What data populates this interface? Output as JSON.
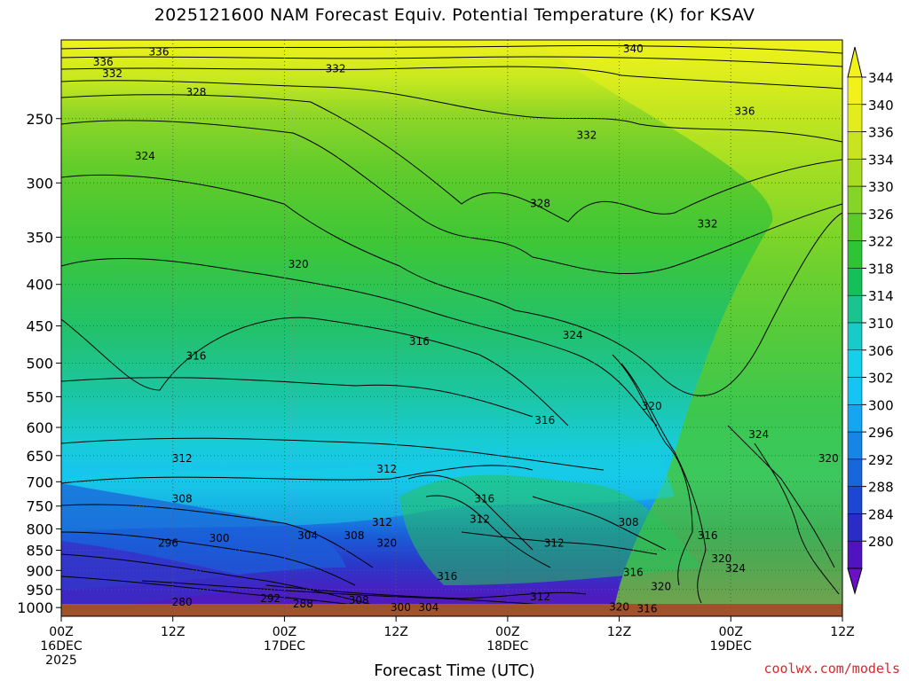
{
  "chart_data": {
    "type": "heatmap",
    "title": "2025121600 NAM Forecast Equiv. Potential Temperature (K) for KSAV",
    "xlabel": "Forecast Time (UTC)",
    "ylabel": "",
    "x_ticks": [
      {
        "line1": "00Z",
        "line2": "16DEC",
        "line3": "2025",
        "hour": 0
      },
      {
        "line1": "12Z",
        "line2": "",
        "line3": "",
        "hour": 12
      },
      {
        "line1": "00Z",
        "line2": "17DEC",
        "line3": "",
        "hour": 24
      },
      {
        "line1": "12Z",
        "line2": "",
        "line3": "",
        "hour": 36
      },
      {
        "line1": "00Z",
        "line2": "18DEC",
        "line3": "",
        "hour": 48
      },
      {
        "line1": "12Z",
        "line2": "",
        "line3": "",
        "hour": 60
      },
      {
        "line1": "00Z",
        "line2": "19DEC",
        "line3": "",
        "hour": 72
      },
      {
        "line1": "12Z",
        "line2": "",
        "line3": "",
        "hour": 84
      }
    ],
    "xlim": [
      0,
      84
    ],
    "y_ticks": [
      250,
      300,
      350,
      400,
      450,
      500,
      550,
      600,
      650,
      700,
      750,
      800,
      850,
      900,
      950,
      1000
    ],
    "ylim": [
      1025,
      200
    ],
    "y_scale": "log-pressure (inverted)",
    "grid": true,
    "colorbar": {
      "labels": [
        "344",
        "340",
        "336",
        "334",
        "330",
        "326",
        "322",
        "318",
        "314",
        "310",
        "306",
        "302",
        "300",
        "296",
        "292",
        "288",
        "284",
        "280"
      ],
      "colors": [
        "#f2f21a",
        "#e3ec1c",
        "#c8e41f",
        "#a8dc22",
        "#86d426",
        "#5ccb2a",
        "#2fc436",
        "#16c059",
        "#1ac491",
        "#19cbc8",
        "#16cfe8",
        "#15c4f4",
        "#14a6f0",
        "#1785e6",
        "#1866dc",
        "#1b47d2",
        "#2a2cc6",
        "#5014bf"
      ],
      "arrow_top_color": "#f2f21a",
      "arrow_bottom_color": "#6c10c8"
    },
    "contour_labels": [
      {
        "text": "336",
        "hour": 10.5,
        "p": 207
      },
      {
        "text": "340",
        "hour": 61.5,
        "p": 205
      },
      {
        "text": "336",
        "hour": 4.5,
        "p": 213
      },
      {
        "text": "332",
        "hour": 5.5,
        "p": 220
      },
      {
        "text": "332",
        "hour": 29.5,
        "p": 217
      },
      {
        "text": "328",
        "hour": 14.5,
        "p": 232
      },
      {
        "text": "336",
        "hour": 73.5,
        "p": 245
      },
      {
        "text": "332",
        "hour": 56.5,
        "p": 262
      },
      {
        "text": "324",
        "hour": 9.0,
        "p": 278
      },
      {
        "text": "328",
        "hour": 51.5,
        "p": 318
      },
      {
        "text": "332",
        "hour": 69.5,
        "p": 337
      },
      {
        "text": "320",
        "hour": 25.5,
        "p": 378
      },
      {
        "text": "316",
        "hour": 14.5,
        "p": 490
      },
      {
        "text": "316",
        "hour": 38.5,
        "p": 470
      },
      {
        "text": "324",
        "hour": 55.0,
        "p": 462
      },
      {
        "text": "320",
        "hour": 63.5,
        "p": 565
      },
      {
        "text": "316",
        "hour": 52.0,
        "p": 588
      },
      {
        "text": "324",
        "hour": 75.0,
        "p": 612
      },
      {
        "text": "320",
        "hour": 82.5,
        "p": 655
      },
      {
        "text": "312",
        "hour": 13.0,
        "p": 655
      },
      {
        "text": "312",
        "hour": 35.0,
        "p": 675
      },
      {
        "text": "308",
        "hour": 13.0,
        "p": 735
      },
      {
        "text": "316",
        "hour": 45.5,
        "p": 735
      },
      {
        "text": "312",
        "hour": 45.0,
        "p": 778
      },
      {
        "text": "312",
        "hour": 34.5,
        "p": 785
      },
      {
        "text": "308",
        "hour": 61.0,
        "p": 785
      },
      {
        "text": "304",
        "hour": 26.5,
        "p": 815
      },
      {
        "text": "308",
        "hour": 31.5,
        "p": 815
      },
      {
        "text": "300",
        "hour": 17.0,
        "p": 822
      },
      {
        "text": "296",
        "hour": 11.5,
        "p": 833
      },
      {
        "text": "320",
        "hour": 35.0,
        "p": 833
      },
      {
        "text": "312",
        "hour": 53.0,
        "p": 833
      },
      {
        "text": "316",
        "hour": 69.5,
        "p": 815
      },
      {
        "text": "320",
        "hour": 71.0,
        "p": 870
      },
      {
        "text": "324",
        "hour": 72.5,
        "p": 895
      },
      {
        "text": "316",
        "hour": 61.5,
        "p": 905
      },
      {
        "text": "316",
        "hour": 41.5,
        "p": 915
      },
      {
        "text": "320",
        "hour": 64.5,
        "p": 942
      },
      {
        "text": "312",
        "hour": 51.5,
        "p": 970
      },
      {
        "text": "292",
        "hour": 22.5,
        "p": 975
      },
      {
        "text": "280",
        "hour": 13.0,
        "p": 985
      },
      {
        "text": "288",
        "hour": 26.0,
        "p": 990
      },
      {
        "text": "308",
        "hour": 32.0,
        "p": 980
      },
      {
        "text": "300",
        "hour": 36.5,
        "p": 1000
      },
      {
        "text": "304",
        "hour": 39.5,
        "p": 1000
      },
      {
        "text": "320",
        "hour": 60.0,
        "p": 998
      },
      {
        "text": "316",
        "hour": 63.0,
        "p": 1003
      }
    ]
  },
  "xlabel": "Forecast Time (UTC)",
  "title": "2025121600 NAM Forecast Equiv. Potential Temperature (K) for KSAV",
  "watermark": "coolwx.com/models"
}
